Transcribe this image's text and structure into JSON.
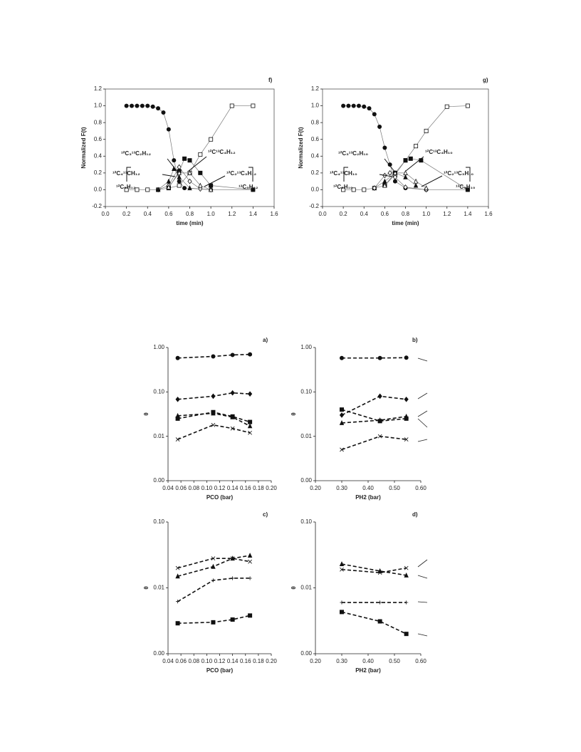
{
  "chart_data": [
    {
      "type": "scatter",
      "panel": "f)",
      "xlabel": "time (min)",
      "ylabel": "Normalized F(t)",
      "frame": true,
      "xlim": [
        0,
        1.6
      ],
      "xticks": [
        {
          "value": 0,
          "label": "0.0"
        },
        0.2,
        0.4,
        0.6,
        0.8,
        {
          "value": 1,
          "label": "1.0"
        },
        1.2,
        1.4,
        1.6
      ],
      "ylim": [
        -0.2,
        1.2
      ],
      "yticks": [
        -0.2,
        {
          "value": 0,
          "label": "0.0"
        },
        0.2,
        0.4,
        0.6,
        0.8,
        {
          "value": 1,
          "label": "1.0"
        },
        1.2
      ],
      "annotations": [
        "¹²C₅H₁₂",
        "¹³C₅H₁₂",
        "¹²C₃¹³C₂H₁₂",
        "¹²C¹³C₄H₁₂",
        "¹²C₄¹³CH₁₂",
        "¹²C₂¹³C₃H₁₂"
      ],
      "series": [
        {
          "marker": "circle",
          "filled": true,
          "x": [
            0.2,
            0.25,
            0.3,
            0.35,
            0.4,
            0.45,
            0.5,
            0.55,
            0.6,
            0.65,
            0.7,
            0.75,
            1.0,
            1.4
          ],
          "values": [
            1,
            1,
            1,
            1,
            1,
            0.99,
            0.97,
            0.92,
            0.72,
            0.35,
            0.1,
            0.02,
            0,
            0
          ]
        },
        {
          "marker": "square",
          "filled": false,
          "x": [
            0.2,
            0.3,
            0.4,
            0.5,
            0.6,
            0.7,
            0.8,
            0.9,
            1.0,
            1.2,
            1.4
          ],
          "values": [
            0,
            0,
            0,
            0,
            0.02,
            0.05,
            0.2,
            0.42,
            0.6,
            1.0,
            1.0
          ]
        },
        {
          "marker": "diamond",
          "filled": false,
          "x": [
            0.5,
            0.6,
            0.7,
            0.8,
            0.9,
            1.0
          ],
          "values": [
            0,
            0.05,
            0.27,
            0.1,
            0.01,
            0
          ]
        },
        {
          "marker": "square",
          "filled": true,
          "x": [
            0.6,
            0.7,
            0.75,
            0.8,
            0.9,
            1.0,
            1.4
          ],
          "values": [
            0.02,
            0.22,
            0.37,
            0.35,
            0.2,
            0.05,
            0
          ]
        },
        {
          "marker": "triangle",
          "filled": true,
          "x": [
            0.5,
            0.6,
            0.65,
            0.7,
            0.8,
            1.0
          ],
          "values": [
            0,
            0.1,
            0.25,
            0.15,
            0.02,
            0
          ]
        },
        {
          "marker": "triangle",
          "filled": false,
          "x": [
            0.6,
            0.7,
            0.8,
            0.9,
            1.0
          ],
          "values": [
            0.03,
            0.2,
            0.2,
            0.05,
            0
          ]
        }
      ]
    },
    {
      "type": "scatter",
      "panel": "g)",
      "xlabel": "time (min)",
      "ylabel": "Normalized F(t)",
      "frame": true,
      "xlim": [
        0,
        1.6
      ],
      "xticks": [
        {
          "value": 0,
          "label": "0.0"
        },
        0.2,
        0.4,
        0.6,
        0.8,
        {
          "value": 1,
          "label": "1.0"
        },
        1.2,
        1.4,
        1.6
      ],
      "ylim": [
        -0.2,
        1.2
      ],
      "yticks": [
        -0.2,
        {
          "value": 0,
          "label": "0.0"
        },
        0.2,
        0.4,
        0.6,
        0.8,
        {
          "value": 1,
          "label": "1.0"
        },
        1.2
      ],
      "annotations": [
        "¹²C₅H₁₀",
        "¹³C₅H₁₀",
        "¹²C₃¹³C₂H₁₀",
        "¹²C¹³C₄H₁₀",
        "¹²C₄¹³CH₁₀",
        "¹²C₂¹³C₃H₁₀"
      ],
      "series": [
        {
          "marker": "circle",
          "filled": true,
          "x": [
            0.2,
            0.25,
            0.3,
            0.35,
            0.4,
            0.45,
            0.5,
            0.55,
            0.6,
            0.65,
            0.7,
            0.8,
            1.0,
            1.4
          ],
          "values": [
            1,
            1,
            1,
            1,
            0.99,
            0.97,
            0.9,
            0.75,
            0.5,
            0.3,
            0.1,
            0.02,
            0,
            0
          ]
        },
        {
          "marker": "square",
          "filled": false,
          "x": [
            0.2,
            0.3,
            0.4,
            0.5,
            0.6,
            0.7,
            0.8,
            0.9,
            1.0,
            1.2,
            1.4
          ],
          "values": [
            0,
            0,
            0,
            0.02,
            0.05,
            0.18,
            0.35,
            0.52,
            0.7,
            0.99,
            1.0
          ]
        },
        {
          "marker": "triangle",
          "filled": true,
          "x": [
            0.5,
            0.6,
            0.7,
            0.8,
            0.9
          ],
          "values": [
            0.02,
            0.1,
            0.2,
            0.15,
            0.05
          ]
        },
        {
          "marker": "square",
          "filled": true,
          "x": [
            0.6,
            0.7,
            0.8,
            0.85,
            0.95,
            1.4
          ],
          "values": [
            0.05,
            0.2,
            0.35,
            0.37,
            0.35,
            0
          ]
        },
        {
          "marker": "diamond",
          "filled": false,
          "x": [
            0.5,
            0.6,
            0.65,
            0.7,
            0.8,
            1.0
          ],
          "values": [
            0.02,
            0.17,
            0.2,
            0.15,
            0.03,
            0
          ]
        },
        {
          "marker": "triangle",
          "filled": false,
          "x": [
            0.6,
            0.7,
            0.8,
            0.9,
            1.0
          ],
          "values": [
            0.05,
            0.2,
            0.2,
            0.1,
            0.02
          ]
        }
      ]
    },
    {
      "type": "line",
      "panel": "a)",
      "xlabel": "PCO (bar)",
      "ylabel": "θ",
      "log_y": true,
      "dashed": true,
      "xlim": [
        0.04,
        0.2
      ],
      "xticks": [
        0.04,
        0.06,
        0.08,
        {
          "value": 0.1,
          "label": "0.10"
        },
        0.12,
        0.14,
        0.16,
        0.18,
        {
          "value": 0.2,
          "label": "0.20"
        }
      ],
      "ylim": [
        0.001,
        1
      ],
      "yticks": [
        {
          "value": 0.001,
          "label": "0.00"
        },
        0.01,
        {
          "value": 0.1,
          "label": "0.10"
        },
        {
          "value": 1,
          "label": "1.00"
        }
      ],
      "series": [
        {
          "marker": "circle",
          "filled": true,
          "x": [
            0.055,
            0.11,
            0.14,
            0.167
          ],
          "values": [
            0.58,
            0.63,
            0.68,
            0.7
          ]
        },
        {
          "marker": "diamond",
          "filled": true,
          "x": [
            0.055,
            0.11,
            0.14,
            0.167
          ],
          "values": [
            0.068,
            0.08,
            0.095,
            0.09
          ]
        },
        {
          "marker": "triangle",
          "filled": true,
          "x": [
            0.055,
            0.11,
            0.14,
            0.167
          ],
          "values": [
            0.029,
            0.033,
            0.027,
            0.017
          ]
        },
        {
          "marker": "square",
          "filled": true,
          "x": [
            0.055,
            0.11,
            0.14,
            0.167
          ],
          "values": [
            0.025,
            0.035,
            0.028,
            0.021
          ]
        },
        {
          "marker": "x",
          "filled": false,
          "x": [
            0.055,
            0.11,
            0.14,
            0.167
          ],
          "values": [
            0.0085,
            0.018,
            0.015,
            0.012
          ]
        }
      ]
    },
    {
      "type": "line",
      "panel": "b)",
      "xlabel": "PH2 (bar)",
      "ylabel": "θ",
      "log_y": true,
      "dashed": true,
      "xlim": [
        0.2,
        0.6
      ],
      "xticks": [
        {
          "value": 0.2,
          "label": "0.20"
        },
        {
          "value": 0.3,
          "label": "0.30"
        },
        {
          "value": 0.4,
          "label": "0.40"
        },
        {
          "value": 0.5,
          "label": "0.50"
        },
        {
          "value": 0.6,
          "label": "0.60"
        }
      ],
      "ylim": [
        0.001,
        1
      ],
      "yticks": [
        {
          "value": 0.001,
          "label": "0.00"
        },
        0.01,
        {
          "value": 0.1,
          "label": "0.10"
        },
        {
          "value": 1,
          "label": "1.00"
        }
      ],
      "series": [
        {
          "marker": "circle",
          "filled": true,
          "x": [
            0.3,
            0.445,
            0.545
          ],
          "values": [
            0.58,
            0.58,
            0.59
          ]
        },
        {
          "marker": "diamond",
          "filled": true,
          "x": [
            0.3,
            0.445,
            0.545
          ],
          "values": [
            0.03,
            0.08,
            0.068
          ]
        },
        {
          "marker": "triangle",
          "filled": true,
          "x": [
            0.3,
            0.445,
            0.545
          ],
          "values": [
            0.02,
            0.023,
            0.028
          ]
        },
        {
          "marker": "square",
          "filled": true,
          "x": [
            0.3,
            0.445,
            0.545
          ],
          "values": [
            0.04,
            0.022,
            0.025
          ]
        },
        {
          "marker": "x",
          "filled": false,
          "x": [
            0.3,
            0.445,
            0.545
          ],
          "values": [
            0.005,
            0.01,
            0.0085
          ]
        }
      ]
    },
    {
      "type": "line",
      "panel": "c)",
      "xlabel": "PCO (bar)",
      "ylabel": "θ",
      "log_y": true,
      "dashed": true,
      "xlim": [
        0.04,
        0.2
      ],
      "xticks": [
        0.04,
        0.06,
        0.08,
        {
          "value": 0.1,
          "label": "0.10"
        },
        0.12,
        0.14,
        0.16,
        0.18,
        {
          "value": 0.2,
          "label": "0.20"
        }
      ],
      "ylim": [
        0.001,
        0.1
      ],
      "yticks": [
        {
          "value": 0.001,
          "label": "0.00"
        },
        0.01,
        {
          "value": 0.1,
          "label": "0.10"
        }
      ],
      "series": [
        {
          "marker": "x",
          "filled": false,
          "x": [
            0.055,
            0.11,
            0.14,
            0.167
          ],
          "values": [
            0.02,
            0.028,
            0.028,
            0.025
          ]
        },
        {
          "marker": "triangle",
          "filled": true,
          "x": [
            0.055,
            0.11,
            0.14,
            0.167
          ],
          "values": [
            0.015,
            0.021,
            0.028,
            0.031
          ]
        },
        {
          "marker": "plus",
          "filled": false,
          "x": [
            0.055,
            0.11,
            0.14,
            0.167
          ],
          "values": [
            0.0062,
            0.013,
            0.014,
            0.014
          ]
        },
        {
          "marker": "square",
          "filled": true,
          "x": [
            0.055,
            0.11,
            0.14,
            0.167
          ],
          "values": [
            0.0029,
            0.003,
            0.0033,
            0.0038
          ]
        }
      ]
    },
    {
      "type": "line",
      "panel": "d)",
      "xlabel": "PH2 (bar)",
      "ylabel": "θ",
      "log_y": true,
      "dashed": true,
      "xlim": [
        0.2,
        0.6
      ],
      "xticks": [
        {
          "value": 0.2,
          "label": "0.20"
        },
        {
          "value": 0.3,
          "label": "0.30"
        },
        {
          "value": 0.4,
          "label": "0.40"
        },
        {
          "value": 0.5,
          "label": "0.50"
        },
        {
          "value": 0.6,
          "label": "0.60"
        }
      ],
      "ylim": [
        0.001,
        0.1
      ],
      "yticks": [
        {
          "value": 0.001,
          "label": "0.00"
        },
        0.01,
        {
          "value": 0.1,
          "label": "0.10"
        }
      ],
      "series": [
        {
          "marker": "triangle",
          "filled": true,
          "x": [
            0.3,
            0.445,
            0.545
          ],
          "values": [
            0.023,
            0.018,
            0.0155
          ]
        },
        {
          "marker": "x",
          "filled": false,
          "x": [
            0.3,
            0.445,
            0.545
          ],
          "values": [
            0.019,
            0.017,
            0.02
          ]
        },
        {
          "marker": "plus",
          "filled": false,
          "x": [
            0.3,
            0.445,
            0.545
          ],
          "values": [
            0.006,
            0.006,
            0.006
          ]
        },
        {
          "marker": "square",
          "filled": true,
          "x": [
            0.3,
            0.445,
            0.545
          ],
          "values": [
            0.0043,
            0.0031,
            0.002
          ]
        }
      ]
    }
  ]
}
